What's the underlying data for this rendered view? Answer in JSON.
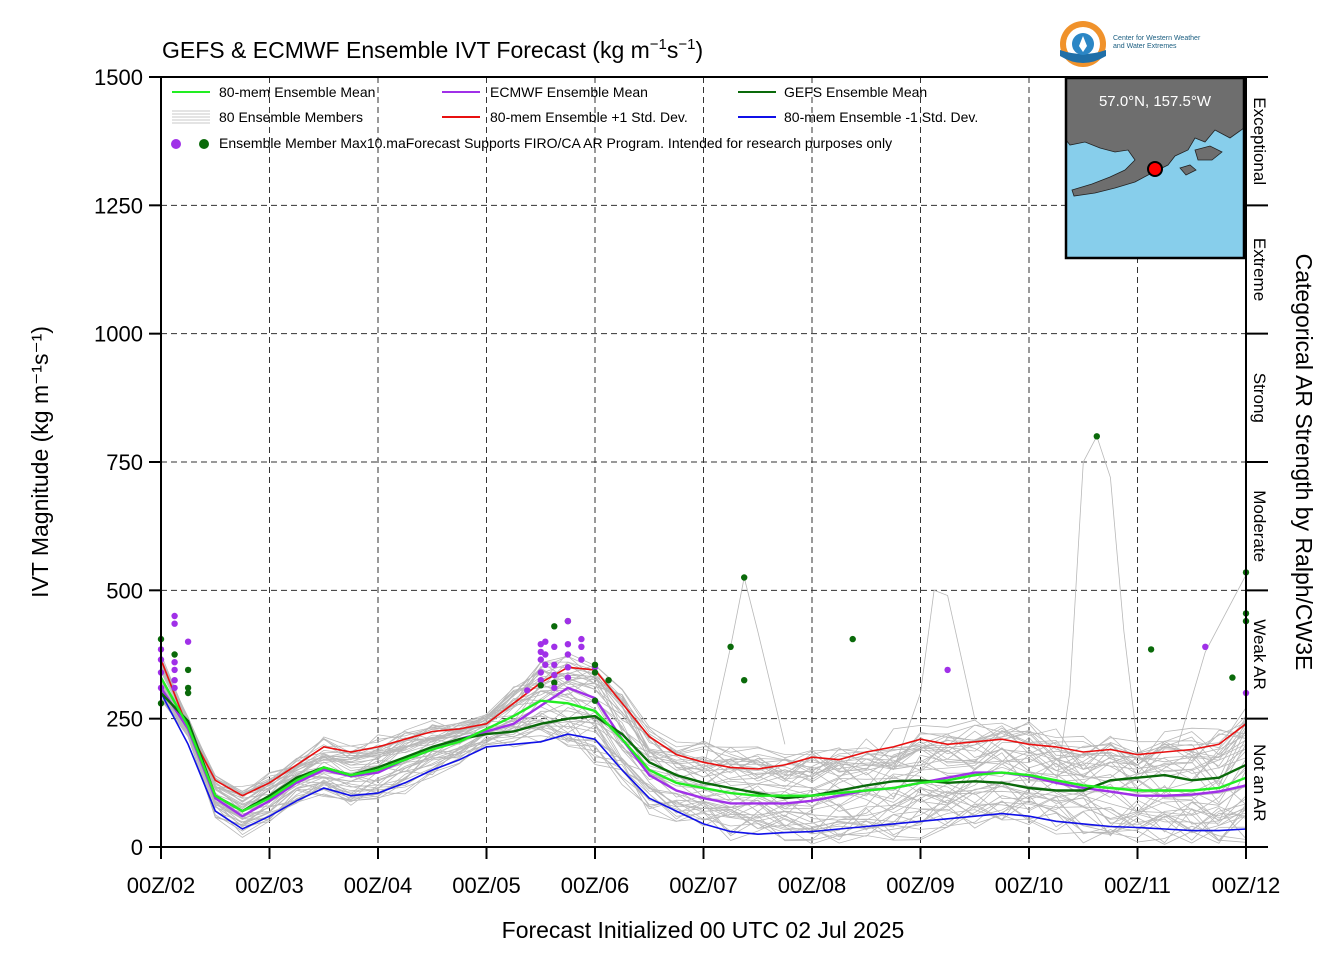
{
  "title_main": "GEFS & ECMWF Ensemble IVT Forecast (kg m",
  "title_exp1": "−1",
  "title_s": "s",
  "title_exp2": "−1",
  "title_end": ")",
  "xlabel": "Forecast Initialized 00 UTC 02 Jul 2025",
  "ylabel": "IVT Magnitude (kg m⁻¹s⁻¹)",
  "right_axis_label": "Categorical AR Strength by Ralph/CW3E",
  "legend": {
    "ens_mean": "80-mem Ensemble Mean",
    "ecmwf_mean": "ECMWF Ensemble Mean",
    "gefs_mean": "GEFS Ensemble Mean",
    "members": "80 Ensemble Members",
    "plus_sd": "80-mem Ensemble +1 Std. Dev.",
    "minus_sd": "80-mem Ensemble -1 Std. Dev.",
    "max_note": "Ensemble Member Max10.maForecast Supports FIRO/CA AR Program. Intended for research purposes only"
  },
  "inset": {
    "location": "57.0°N, 157.5°W"
  },
  "logo": {
    "line1": "Center for Western Weather",
    "line2": "and Water Extremes"
  },
  "colors": {
    "ens_mean": "#22ee22",
    "ecmwf_mean": "#a030e8",
    "gefs_mean": "#0a6a0a",
    "plus_sd": "#e81010",
    "minus_sd": "#1010e8",
    "members": "#b8b8b8",
    "ocean": "#87ceeb",
    "land": "#6e6e6e"
  },
  "chart_data": {
    "type": "line",
    "x": [
      0,
      6,
      12,
      18,
      24,
      30,
      36,
      42,
      48,
      54,
      60,
      66,
      72,
      78,
      84,
      90,
      96,
      102,
      108,
      114,
      120,
      126,
      132,
      138,
      144,
      150,
      156,
      162,
      168,
      174,
      180,
      186,
      192,
      198,
      204,
      210,
      216,
      222,
      228,
      234,
      240
    ],
    "x_unit": "forecast hours since 00Z/02",
    "xlim": [
      0,
      240
    ],
    "xticks": [
      "00Z/02",
      "00Z/03",
      "00Z/04",
      "00Z/05",
      "00Z/06",
      "00Z/07",
      "00Z/08",
      "00Z/09",
      "00Z/10",
      "00Z/11",
      "00Z/12"
    ],
    "ylim": [
      0,
      1500
    ],
    "yticks": [
      0,
      250,
      500,
      750,
      1000,
      1250,
      1500
    ],
    "categories_right": [
      {
        "label": "Not an AR",
        "from": 0,
        "to": 250
      },
      {
        "label": "Weak AR",
        "from": 250,
        "to": 500
      },
      {
        "label": "Moderate",
        "from": 500,
        "to": 750
      },
      {
        "label": "Strong",
        "from": 750,
        "to": 1000
      },
      {
        "label": "Extreme",
        "from": 1000,
        "to": 1250
      },
      {
        "label": "Exceptional",
        "from": 1250,
        "to": 1500
      }
    ],
    "grid": true,
    "legend_position": "top-left",
    "series": [
      {
        "key": "plus_sd",
        "values": [
          365,
          230,
          130,
          100,
          125,
          160,
          195,
          185,
          195,
          210,
          225,
          230,
          240,
          280,
          320,
          350,
          345,
          280,
          215,
          180,
          165,
          155,
          152,
          160,
          175,
          170,
          185,
          195,
          210,
          200,
          205,
          210,
          200,
          195,
          185,
          190,
          180,
          185,
          190,
          200,
          240
        ]
      },
      {
        "key": "ens_mean",
        "values": [
          330,
          235,
          100,
          70,
          95,
          130,
          155,
          140,
          150,
          170,
          190,
          205,
          230,
          255,
          285,
          280,
          265,
          210,
          150,
          125,
          115,
          105,
          100,
          100,
          100,
          105,
          110,
          115,
          125,
          130,
          140,
          145,
          140,
          130,
          120,
          115,
          110,
          110,
          110,
          115,
          135
        ]
      },
      {
        "key": "ecmwf_mean",
        "values": [
          310,
          230,
          95,
          60,
          90,
          125,
          150,
          138,
          145,
          170,
          190,
          210,
          225,
          240,
          275,
          310,
          290,
          210,
          140,
          110,
          95,
          85,
          85,
          85,
          90,
          100,
          110,
          115,
          125,
          135,
          145,
          145,
          138,
          125,
          115,
          108,
          100,
          100,
          102,
          108,
          120
        ]
      },
      {
        "key": "gefs_mean",
        "values": [
          300,
          245,
          100,
          70,
          100,
          135,
          155,
          140,
          155,
          175,
          195,
          210,
          220,
          225,
          240,
          250,
          255,
          220,
          165,
          140,
          125,
          115,
          105,
          95,
          100,
          110,
          120,
          128,
          130,
          125,
          128,
          125,
          115,
          110,
          110,
          130,
          135,
          140,
          130,
          135,
          160
        ]
      },
      {
        "key": "minus_sd",
        "values": [
          300,
          200,
          70,
          35,
          60,
          90,
          115,
          100,
          105,
          125,
          150,
          170,
          195,
          200,
          205,
          220,
          210,
          150,
          95,
          70,
          45,
          30,
          25,
          28,
          30,
          35,
          40,
          45,
          50,
          55,
          60,
          65,
          60,
          50,
          45,
          40,
          38,
          35,
          32,
          32,
          35
        ]
      }
    ],
    "member_max_points": [
      {
        "x": 0,
        "y": 405,
        "s": "gefs"
      },
      {
        "x": 0,
        "y": 385,
        "s": "ecmwf"
      },
      {
        "x": 0,
        "y": 365,
        "s": "ecmwf"
      },
      {
        "x": 0,
        "y": 340,
        "s": "ecmwf"
      },
      {
        "x": 0,
        "y": 310,
        "s": "ecmwf"
      },
      {
        "x": 0,
        "y": 280,
        "s": "gefs"
      },
      {
        "x": 3,
        "y": 450,
        "s": "ecmwf"
      },
      {
        "x": 3,
        "y": 435,
        "s": "ecmwf"
      },
      {
        "x": 3,
        "y": 375,
        "s": "gefs"
      },
      {
        "x": 3,
        "y": 360,
        "s": "ecmwf"
      },
      {
        "x": 3,
        "y": 345,
        "s": "ecmwf"
      },
      {
        "x": 3,
        "y": 325,
        "s": "ecmwf"
      },
      {
        "x": 3,
        "y": 310,
        "s": "ecmwf"
      },
      {
        "x": 6,
        "y": 400,
        "s": "ecmwf"
      },
      {
        "x": 6,
        "y": 345,
        "s": "gefs"
      },
      {
        "x": 6,
        "y": 310,
        "s": "gefs"
      },
      {
        "x": 6,
        "y": 300,
        "s": "gefs"
      },
      {
        "x": 81,
        "y": 305,
        "s": "ecmwf"
      },
      {
        "x": 84,
        "y": 395,
        "s": "ecmwf"
      },
      {
        "x": 84,
        "y": 380,
        "s": "ecmwf"
      },
      {
        "x": 84,
        "y": 365,
        "s": "ecmwf"
      },
      {
        "x": 84,
        "y": 340,
        "s": "ecmwf"
      },
      {
        "x": 84,
        "y": 325,
        "s": "ecmwf"
      },
      {
        "x": 85,
        "y": 400,
        "s": "ecmwf"
      },
      {
        "x": 85,
        "y": 375,
        "s": "ecmwf"
      },
      {
        "x": 85,
        "y": 355,
        "s": "ecmwf"
      },
      {
        "x": 84,
        "y": 315,
        "s": "gefs"
      },
      {
        "x": 87,
        "y": 430,
        "s": "gefs"
      },
      {
        "x": 87,
        "y": 390,
        "s": "ecmwf"
      },
      {
        "x": 87,
        "y": 355,
        "s": "ecmwf"
      },
      {
        "x": 87,
        "y": 335,
        "s": "ecmwf"
      },
      {
        "x": 87,
        "y": 320,
        "s": "gefs"
      },
      {
        "x": 87,
        "y": 310,
        "s": "ecmwf"
      },
      {
        "x": 90,
        "y": 440,
        "s": "gefs"
      },
      {
        "x": 90,
        "y": 395,
        "s": "ecmwf"
      },
      {
        "x": 90,
        "y": 375,
        "s": "ecmwf"
      },
      {
        "x": 90,
        "y": 350,
        "s": "ecmwf"
      },
      {
        "x": 90,
        "y": 330,
        "s": "ecmwf"
      },
      {
        "x": 90,
        "y": 440,
        "s": "ecmwf"
      },
      {
        "x": 93,
        "y": 405,
        "s": "ecmwf"
      },
      {
        "x": 93,
        "y": 390,
        "s": "ecmwf"
      },
      {
        "x": 93,
        "y": 365,
        "s": "ecmwf"
      },
      {
        "x": 96,
        "y": 350,
        "s": "ecmwf"
      },
      {
        "x": 96,
        "y": 340,
        "s": "gefs"
      },
      {
        "x": 96,
        "y": 285,
        "s": "gefs"
      },
      {
        "x": 96,
        "y": 355,
        "s": "gefs"
      },
      {
        "x": 99,
        "y": 325,
        "s": "gefs"
      },
      {
        "x": 126,
        "y": 390,
        "s": "gefs"
      },
      {
        "x": 129,
        "y": 525,
        "s": "gefs"
      },
      {
        "x": 129,
        "y": 325,
        "s": "gefs"
      },
      {
        "x": 153,
        "y": 405,
        "s": "gefs"
      },
      {
        "x": 174,
        "y": 345,
        "s": "ecmwf"
      },
      {
        "x": 207,
        "y": 800,
        "s": "gefs"
      },
      {
        "x": 219,
        "y": 385,
        "s": "gefs"
      },
      {
        "x": 231,
        "y": 390,
        "s": "ecmwf"
      },
      {
        "x": 237,
        "y": 330,
        "s": "gefs"
      },
      {
        "x": 240,
        "y": 535,
        "s": "gefs"
      },
      {
        "x": 240,
        "y": 455,
        "s": "gefs"
      },
      {
        "x": 240,
        "y": 440,
        "s": "gefs"
      },
      {
        "x": 240,
        "y": 300,
        "s": "ecmwf"
      }
    ]
  }
}
